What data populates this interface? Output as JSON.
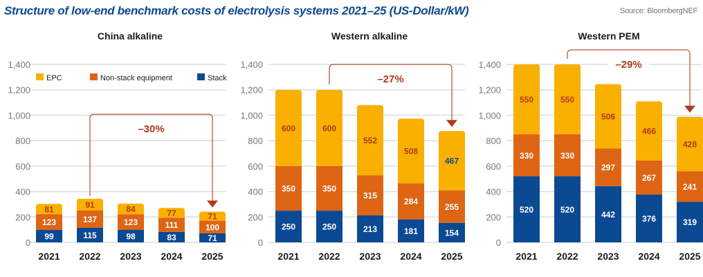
{
  "title": "Structure of low-end benchmark costs of electrolysis systems 2021–25 (US-Dollar/kW)",
  "source": "Source: BloombergNEF",
  "colors": {
    "stack": "#0b4a93",
    "nonstack": "#de6514",
    "epc": "#f9b000",
    "annotation": "#b23a1a",
    "grid": "#d8dde2"
  },
  "chart_data": [
    {
      "type": "bar",
      "stacked": true,
      "title": "China alkaline",
      "categories": [
        "2021",
        "2022",
        "2023",
        "2024",
        "2025"
      ],
      "series": [
        {
          "name": "Stack",
          "key": "stack",
          "values": [
            99,
            115,
            98,
            83,
            71
          ]
        },
        {
          "name": "Non-stack equipment",
          "key": "nonstack",
          "values": [
            123,
            137,
            123,
            111,
            100
          ]
        },
        {
          "name": "EPC",
          "key": "epc",
          "values": [
            81,
            91,
            84,
            77,
            71
          ]
        }
      ],
      "ylim": [
        0,
        1400
      ],
      "yticks": [
        "0",
        "200",
        "400",
        "600",
        "800",
        "1,000",
        "1,200",
        "1,400"
      ],
      "grid": true,
      "legend": {
        "placement": "top",
        "entries": [
          "EPC",
          "Non-stack equipment",
          "Stack"
        ]
      },
      "annotation": {
        "label": "–30%",
        "from": "2022",
        "to": "2025"
      },
      "epc_label_color": "annotation"
    },
    {
      "type": "bar",
      "stacked": true,
      "title": "Western alkaline",
      "categories": [
        "2021",
        "2022",
        "2023",
        "2024",
        "2025"
      ],
      "series": [
        {
          "name": "Stack",
          "key": "stack",
          "values": [
            250,
            250,
            213,
            181,
            154
          ]
        },
        {
          "name": "Non-stack equipment",
          "key": "nonstack",
          "values": [
            350,
            350,
            315,
            284,
            255
          ]
        },
        {
          "name": "EPC",
          "key": "epc",
          "values": [
            600,
            600,
            552,
            508,
            467
          ]
        }
      ],
      "ylim": [
        0,
        1400
      ],
      "yticks": [
        "0",
        "200",
        "400",
        "600",
        "800",
        "1,000",
        "1,200",
        "1,400"
      ],
      "grid": true,
      "annotation": {
        "label": "–27%",
        "from": "2022",
        "to": "2025"
      },
      "epc_label_color_last": "stack"
    },
    {
      "type": "bar",
      "stacked": true,
      "title": "Western PEM",
      "categories": [
        "2021",
        "2022",
        "2023",
        "2024",
        "2025"
      ],
      "series": [
        {
          "name": "Stack",
          "key": "stack",
          "values": [
            520,
            520,
            442,
            376,
            319
          ]
        },
        {
          "name": "Non-stack equipment",
          "key": "nonstack",
          "values": [
            330,
            330,
            297,
            267,
            241
          ]
        },
        {
          "name": "EPC",
          "key": "epc",
          "values": [
            550,
            550,
            506,
            466,
            428
          ]
        }
      ],
      "ylim": [
        0,
        1400
      ],
      "yticks": [
        "0",
        "200",
        "400",
        "600",
        "800",
        "1,000",
        "1,200",
        "1,400"
      ],
      "grid": true,
      "annotation": {
        "label": "–29%",
        "from": "2022",
        "to": "2025"
      }
    }
  ]
}
